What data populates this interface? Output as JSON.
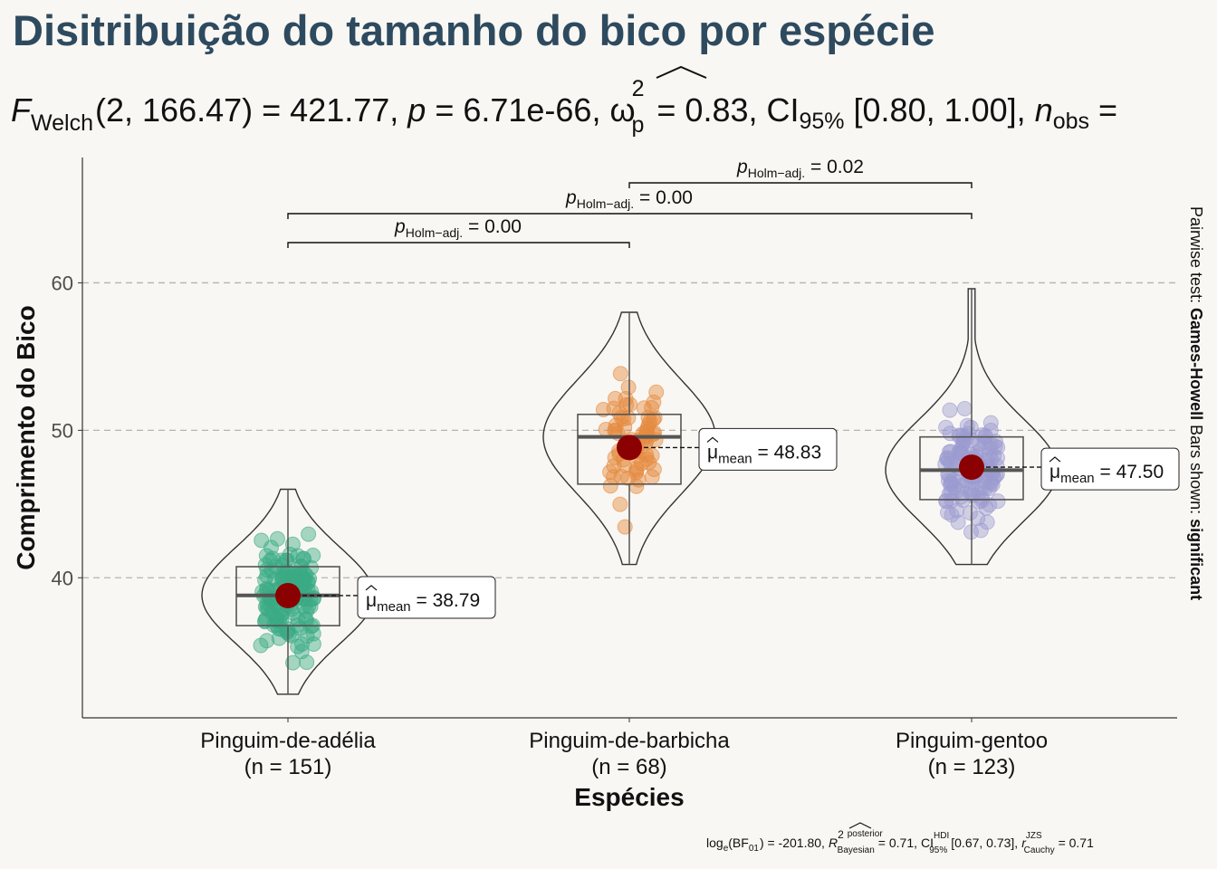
{
  "title": "Disitribuição do tamanho do bico por espécie",
  "subtitle": {
    "f_symbol": "F",
    "f_sub": "Welch",
    "f_args": "(2, 166.47)",
    "f_value": "= 421.77,",
    "p_symbol": "p",
    "p_value": "= 6.71e-66,",
    "omega_symbol": "ω",
    "omega_sup": "2",
    "omega_sub": "p",
    "omega_value": "= 0.83,",
    "ci_symbol": "CI",
    "ci_sub": "95%",
    "ci_value": "[0.80, 1.00],",
    "n_symbol": "n",
    "n_sub": "obs",
    "n_value": "="
  },
  "caption": {
    "log_symbol": "log",
    "log_sub": "e",
    "bf": "(BF",
    "bf_sub": "01",
    "bf_value": ") = -201.80,",
    "r_symbol": "R",
    "r_sup": "2",
    "r_sup2": "posterior",
    "r_sub": "Bayesian",
    "r_value": "= 0.71,",
    "ci_symbol": "CI",
    "ci_sup": "HDI",
    "ci_sub": "95%",
    "ci_value": "[0.67, 0.73],",
    "rc_symbol": "r",
    "rc_sup": "JZS",
    "rc_sub": "Cauchy",
    "rc_value": "= 0.71"
  },
  "side_note": {
    "prefix": "Pairwise test: ",
    "test": "Games-Howell",
    "middle": " Bars shown: ",
    "bars": "significant"
  },
  "colors": {
    "background": "#f9f7f3",
    "title": "#2e4a5f",
    "mean_point": "#8b0000",
    "grid": "#b3b3b3"
  },
  "chart_data": {
    "type": "violin-box-scatter",
    "xlabel": "Espécies",
    "ylabel": "Comprimento do Bico",
    "ylim": [
      30.5,
      68.5
    ],
    "yticks": [
      40,
      50,
      60
    ],
    "grid": "major-y dashed",
    "groups": [
      {
        "name": "Pinguim-de-adélia",
        "n_label": "(n = 151)",
        "n": 151,
        "color": "#3aaa84",
        "min": 32.1,
        "q1": 36.75,
        "median": 38.8,
        "q3": 40.75,
        "max": 46.0,
        "mean": 38.79,
        "mean_label": "= 38.79"
      },
      {
        "name": "Pinguim-de-barbicha",
        "n_label": "(n = 68)",
        "n": 68,
        "color": "#e58a3f",
        "min": 40.9,
        "q1": 46.35,
        "median": 49.55,
        "q3": 51.08,
        "max": 58.0,
        "mean": 48.83,
        "mean_label": "= 48.83"
      },
      {
        "name": "Pinguim-gentoo",
        "n_label": "(n = 123)",
        "n": 123,
        "color": "#9c9bd0",
        "min": 40.9,
        "q1": 45.3,
        "median": 47.3,
        "q3": 49.55,
        "max": 59.6,
        "mean": 47.5,
        "mean_label": "= 47.50"
      }
    ],
    "pairwise": [
      {
        "from": 0,
        "to": 1,
        "label_symbol": "p",
        "label_sub": "Holm−adj.",
        "label_value": "= 0.00"
      },
      {
        "from": 0,
        "to": 2,
        "label_symbol": "p",
        "label_sub": "Holm−adj.",
        "label_value": "= 0.00"
      },
      {
        "from": 1,
        "to": 2,
        "label_symbol": "p",
        "label_sub": "Holm−adj.",
        "label_value": "= 0.02"
      }
    ]
  }
}
